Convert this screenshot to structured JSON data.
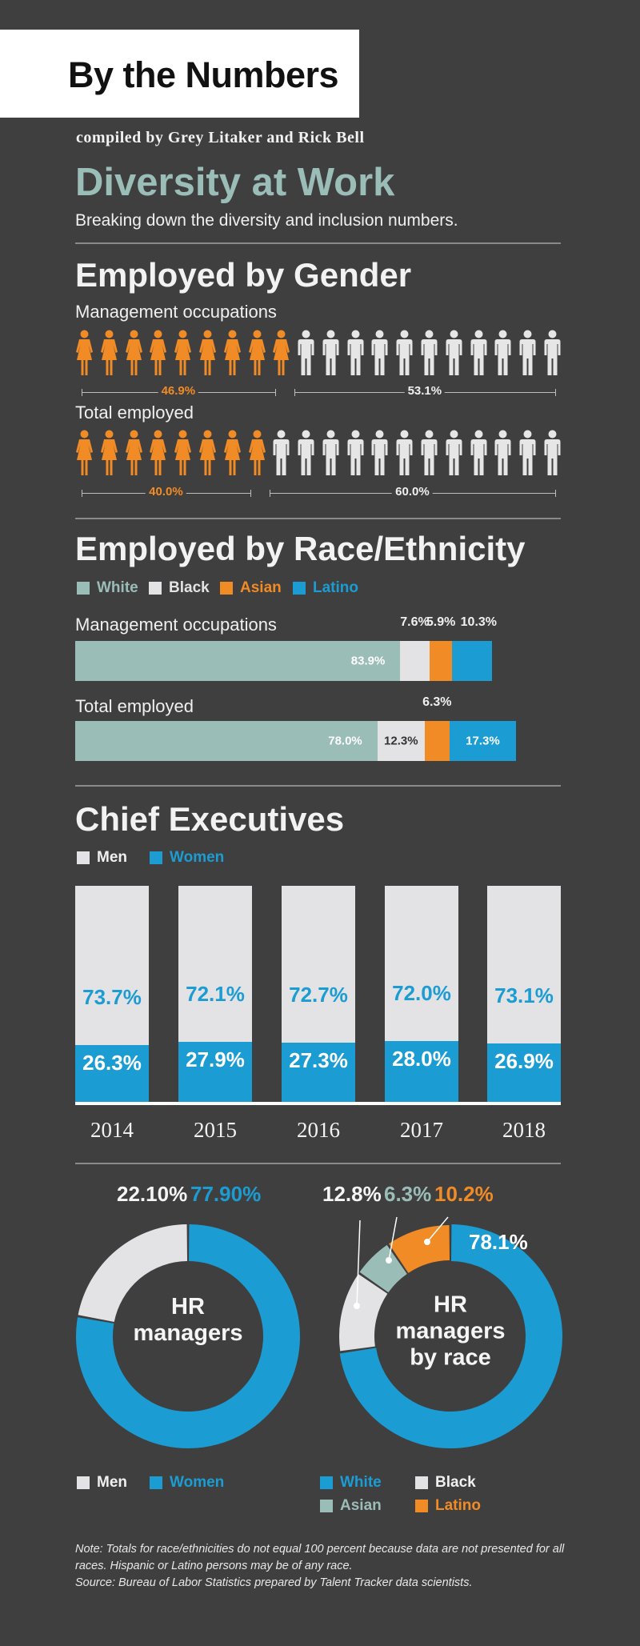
{
  "header": {
    "title": "By the Numbers",
    "byline": "compiled by Grey Litaker and Rick Bell"
  },
  "intro": {
    "title": "Diversity at Work",
    "subtitle": "Breaking down the diversity and inclusion numbers."
  },
  "colors": {
    "bg": "#403f40",
    "orange": "#f08b25",
    "white_person": "#e6e6e6",
    "teal": "#9bbdb7",
    "blue": "#1b9cd2",
    "light": "#e3e3e5"
  },
  "gender": {
    "title": "Employed by Gender",
    "rows": [
      {
        "label": "Management occupations",
        "women_icons": 9,
        "men_icons": 11,
        "women_pct": "46.9%",
        "men_pct": "53.1%"
      },
      {
        "label": "Total employed",
        "women_icons": 8,
        "men_icons": 12,
        "women_pct": "40.0%",
        "men_pct": "60.0%"
      }
    ]
  },
  "race": {
    "title": "Employed by Race/Ethnicity",
    "legend": [
      "White",
      "Black",
      "Asian",
      "Latino"
    ]
  },
  "chief": {
    "title": "Chief Executives",
    "legend": [
      "Men",
      "Women"
    ]
  },
  "hr": {
    "gender_center": "HR\nmanagers",
    "race_center": "HR\nmanagers\nby race",
    "gender_legend": [
      "Men",
      "Women"
    ],
    "race_legend": [
      "White",
      "Black",
      "Asian",
      "Latino"
    ]
  },
  "chart_data": [
    {
      "type": "bar",
      "title": "Employed by Race/Ethnicity",
      "orientation": "horizontal-stacked",
      "categories": [
        "Management occupations",
        "Total employed"
      ],
      "series": [
        {
          "name": "White",
          "values": [
            83.9,
            78.0
          ],
          "labels": [
            "83.9%",
            "78.0%"
          ]
        },
        {
          "name": "Black",
          "values": [
            7.6,
            12.3
          ],
          "labels": [
            "7.6%",
            "12.3%"
          ]
        },
        {
          "name": "Asian",
          "values": [
            5.9,
            6.3
          ],
          "labels": [
            "5.9%",
            "6.3%"
          ]
        },
        {
          "name": "Latino",
          "values": [
            10.3,
            17.3
          ],
          "labels": [
            "10.3%",
            "17.3%"
          ]
        }
      ]
    },
    {
      "type": "bar",
      "title": "Chief Executives",
      "orientation": "vertical-stacked",
      "categories": [
        "2014",
        "2015",
        "2016",
        "2017",
        "2018"
      ],
      "series": [
        {
          "name": "Men",
          "values": [
            73.7,
            72.1,
            72.7,
            72.0,
            73.1
          ],
          "labels": [
            "73.7%",
            "72.1%",
            "72.7%",
            "72.0%",
            "73.1%"
          ]
        },
        {
          "name": "Women",
          "values": [
            26.3,
            27.9,
            27.3,
            28.0,
            26.9
          ],
          "labels": [
            "26.3%",
            "27.9%",
            "27.3%",
            "28.0%",
            "26.9%"
          ]
        }
      ],
      "ylim": [
        0,
        100
      ]
    },
    {
      "type": "pie",
      "title": "HR managers",
      "categories": [
        "Men",
        "Women"
      ],
      "values": [
        22.1,
        77.9
      ],
      "labels": [
        "22.10%",
        "77.90%"
      ]
    },
    {
      "type": "pie",
      "title": "HR managers by race",
      "categories": [
        "White",
        "Black",
        "Asian",
        "Latino"
      ],
      "values": [
        78.1,
        12.8,
        6.3,
        10.2
      ],
      "labels": [
        "78.1%",
        "12.8%",
        "6.3%",
        "10.2%"
      ]
    }
  ],
  "note": "Note: Totals for race/ethnicities do not equal 100 percent because data are not presented for all races. Hispanic or Latino persons may be of any race.",
  "source": "Source: Bureau of Labor Statistics prepared by Talent Tracker data scientists."
}
